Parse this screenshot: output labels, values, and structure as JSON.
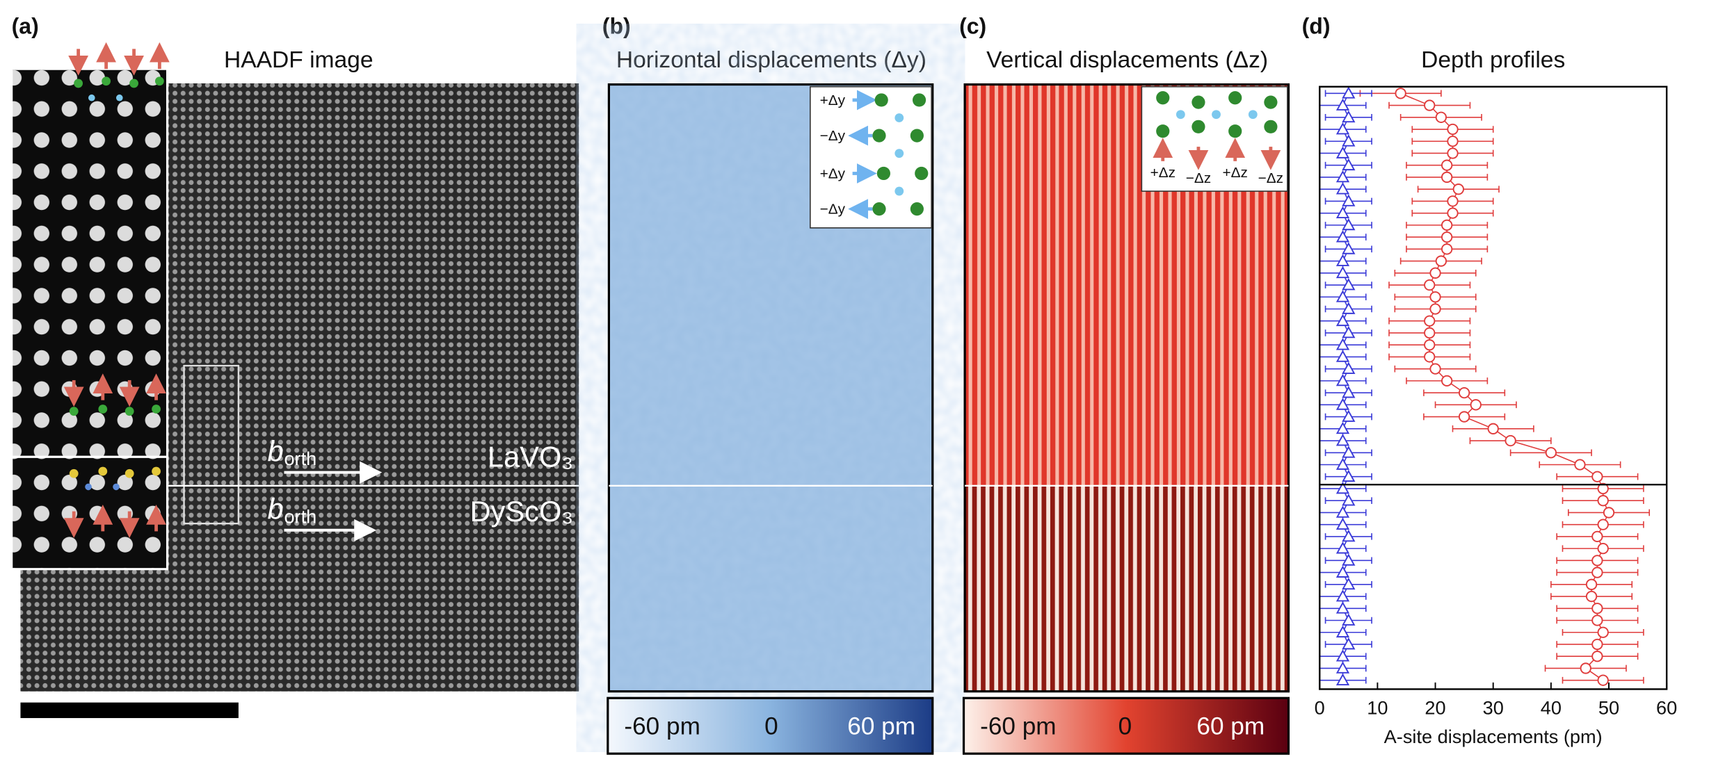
{
  "panels": {
    "a": {
      "label": "(a)",
      "title": "HAADF image",
      "vector": "b",
      "vector_sub": "orth",
      "film": "LaVO₃",
      "substrate": "DyScO₃"
    },
    "b": {
      "label": "(b)",
      "title": "Horizontal displacements (Δy)",
      "inset": [
        "+Δy",
        "−Δy",
        "+Δy",
        "−Δy"
      ],
      "colorbar": [
        "-60 pm",
        "0",
        "60 pm"
      ]
    },
    "c": {
      "label": "(c)",
      "title": "Vertical displacements (Δz)",
      "inset": [
        "+Δz",
        "−Δz",
        "+Δz",
        "−Δz"
      ],
      "colorbar": [
        "-60 pm",
        "0",
        "60 pm"
      ]
    },
    "d": {
      "label": "(d)"
    }
  },
  "chart_data": {
    "type": "errorbar-profile",
    "title": "Depth profiles",
    "x_label": "A-site displacements (pm)",
    "xlim": [
      0,
      60
    ],
    "xticks": [
      0,
      10,
      20,
      30,
      40,
      50,
      60
    ],
    "categories": [
      null,
      null,
      null,
      null,
      null,
      null,
      null,
      null,
      null,
      null,
      null,
      null,
      null,
      null,
      null,
      null,
      null,
      null,
      null,
      null,
      null,
      null,
      null,
      null,
      null,
      null,
      null,
      null,
      null,
      null,
      null,
      null,
      null,
      null,
      null,
      null,
      null,
      null,
      null,
      null,
      null,
      null,
      null,
      null,
      null,
      null,
      null,
      null,
      null,
      null
    ],
    "series": [
      {
        "color": "#e03c3c",
        "marker": "circle",
        "values": [
          14,
          19,
          21,
          23,
          23,
          23,
          22,
          22,
          24,
          23,
          23,
          22,
          22,
          22,
          21,
          20,
          19,
          20,
          20,
          19,
          19,
          19,
          19,
          20,
          22,
          25,
          27,
          25,
          30,
          33,
          40,
          45,
          48,
          49,
          49,
          50,
          49,
          48,
          49,
          48,
          48,
          47,
          47,
          48,
          48,
          49,
          48,
          48,
          46,
          49
        ],
        "errors": [
          7,
          7,
          7,
          7,
          7,
          7,
          7,
          7,
          7,
          7,
          7,
          7,
          7,
          7,
          7,
          7,
          7,
          7,
          7,
          7,
          7,
          7,
          7,
          7,
          7,
          7,
          7,
          7,
          7,
          7,
          7,
          7,
          7,
          7,
          7,
          7,
          7,
          7,
          7,
          7,
          7,
          7,
          7,
          7,
          7,
          7,
          7,
          7,
          7,
          7
        ]
      },
      {
        "color": "#3a3ad8",
        "marker": "triangle",
        "values": [
          5,
          4,
          5,
          4,
          5,
          4,
          5,
          4,
          4,
          5,
          4,
          5,
          4,
          5,
          4,
          4,
          5,
          4,
          5,
          4,
          5,
          4,
          4,
          5,
          4,
          5,
          4,
          5,
          4,
          4,
          5,
          4,
          5,
          4,
          5,
          4,
          4,
          5,
          4,
          5,
          4,
          5,
          4,
          4,
          5,
          4,
          5,
          4,
          4,
          4
        ],
        "errors": [
          4,
          4,
          4,
          4,
          4,
          4,
          4,
          4,
          4,
          4,
          4,
          4,
          4,
          4,
          4,
          4,
          4,
          4,
          4,
          4,
          4,
          4,
          4,
          4,
          4,
          4,
          4,
          4,
          4,
          4,
          4,
          4,
          4,
          4,
          4,
          4,
          4,
          4,
          4,
          4,
          4,
          4,
          4,
          4,
          4,
          4,
          4,
          4,
          4,
          4
        ]
      }
    ]
  }
}
